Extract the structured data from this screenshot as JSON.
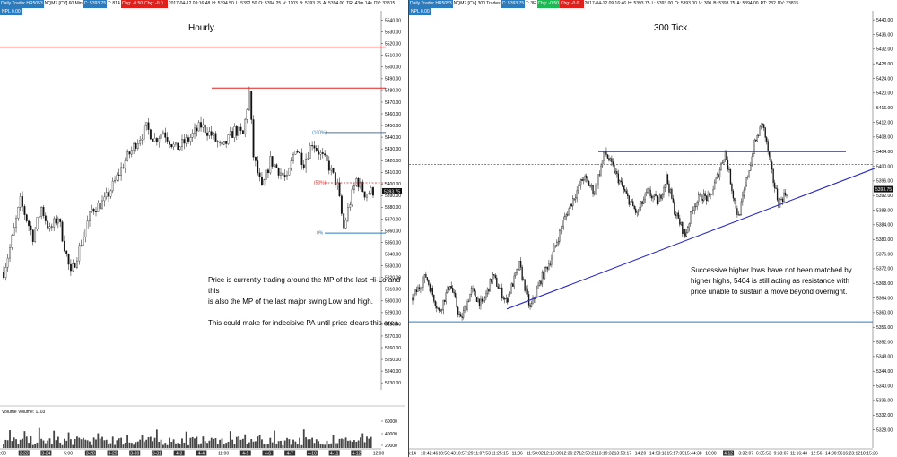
{
  "left": {
    "header": {
      "instrument": "Daily Trader HR5053",
      "symbol": "NQM7 [CV]  60 Min",
      "c": "C: 5393.75",
      "t": "T: 814",
      "chg": "Chg: -0.50",
      "chgp": "Chg: -0.0...",
      "date": "2017-04-12 09:16:48",
      "h": "H: 5394.50",
      "l": "L: 5392.50",
      "o": "O: 5394.25",
      "v": "V: 1103",
      "b": "B: 5393.75",
      "a": "A: 5394.00",
      "tr": "TR: 43m 14s",
      "dv": "DV: 33815",
      "sub": "NPL 0.00"
    },
    "title": "Hourly.",
    "note_lines": [
      "Price is currently trading  around the MP of the last Hi-Lo and this",
      "is also the MP of the last major swing Low and high.",
      "",
      "This could make for indecisive PA until price clears this area."
    ],
    "fib_labels": [
      "(100%)",
      "(50%)",
      "0%"
    ],
    "price_tag": "5393.75",
    "volume_label": "Volume  Volume: 1103",
    "volume_axis": [
      "60000",
      "40000",
      "20000"
    ],
    "x_labels": [
      "2:00",
      "3-23",
      "3-24",
      "5:00",
      "3-28",
      "3-29",
      "3-30",
      "3-31",
      "4-3",
      "4-4",
      "11:00",
      "4-5",
      "4-6",
      "4-7",
      "4-10",
      "4-11",
      "4-12",
      "12:00"
    ],
    "color_red": "#e0201c",
    "color_blue": "#2b7bbf"
  },
  "right": {
    "header": {
      "instrument": "Daily Trader HR5053",
      "symbol": "NQM7 [CV]  300 Trades",
      "c": "C: 5393.75",
      "t": "T: 3E",
      "chg": "Chg: -0.50",
      "chgp": "Chg: -0.0...",
      "date": "2017-04-12 09:16:46",
      "h": "H: 5393.75",
      "l": "L: 5393.00",
      "o": "O: 5393.00",
      "v": "V: 300",
      "b": "B: 5393.75",
      "a": "A: 5394.00",
      "rt": "RT: 282",
      "dv": "DV: 33815",
      "sub": "NPL 0.00"
    },
    "title": "300 Tick.",
    "note_lines": [
      "Successive higher lows have not been matched by",
      "higher highs, 5404 is still acting as resistance with",
      "price unable to sustain a move beyond overnight."
    ],
    "price_tag": "5393.75",
    "x_labels": [
      "4:14",
      "10:42:46",
      "10:50:43",
      "10:57:29",
      "11:07:53",
      "11:25:15",
      "11:36",
      "11:50:02",
      "12:19:39",
      "12:36:27",
      "12:59:21",
      "13:19:32",
      "13:50:17",
      "14:20",
      "14:53:18",
      "15:17:35",
      "15:44:38",
      "16:00",
      "4-12",
      "3:32:07",
      "6:35:53",
      "9:33:07",
      "11:16:43",
      "12:56",
      "14:30:56",
      "16:23:12",
      "18:15:26"
    ]
  },
  "chart_data": [
    {
      "type": "candlestick",
      "title": "Hourly.",
      "ylim": [
        5224,
        5542
      ],
      "yticks": [
        5540,
        5530,
        5520,
        5510,
        5500,
        5490,
        5480,
        5470,
        5460,
        5450,
        5440,
        5430,
        5420,
        5410,
        5400,
        5390,
        5380,
        5370,
        5360,
        5350,
        5340,
        5330,
        5320,
        5310,
        5300,
        5290,
        5280,
        5270,
        5260,
        5250,
        5240,
        5230
      ],
      "anchors": [
        [
          0,
          5325
        ],
        [
          3,
          5345
        ],
        [
          8,
          5385
        ],
        [
          14,
          5355
        ],
        [
          18,
          5380
        ],
        [
          22,
          5360
        ],
        [
          26,
          5372
        ],
        [
          32,
          5322
        ],
        [
          36,
          5345
        ],
        [
          42,
          5378
        ],
        [
          48,
          5385
        ],
        [
          53,
          5402
        ],
        [
          58,
          5420
        ],
        [
          63,
          5435
        ],
        [
          68,
          5448
        ],
        [
          72,
          5438
        ],
        [
          76,
          5445
        ],
        [
          82,
          5430
        ],
        [
          88,
          5438
        ],
        [
          94,
          5450
        ],
        [
          99,
          5442
        ],
        [
          104,
          5430
        ],
        [
          110,
          5446
        ],
        [
          114,
          5442
        ],
        [
          117,
          5478
        ],
        [
          119,
          5424
        ],
        [
          123,
          5395
        ],
        [
          127,
          5420
        ],
        [
          131,
          5412
        ],
        [
          135,
          5403
        ],
        [
          139,
          5432
        ],
        [
          143,
          5418
        ],
        [
          147,
          5436
        ],
        [
          151,
          5425
        ],
        [
          155,
          5415
        ],
        [
          159,
          5398
        ],
        [
          162,
          5362
        ],
        [
          164,
          5378
        ],
        [
          168,
          5404
        ],
        [
          172,
          5392
        ],
        [
          176,
          5394
        ]
      ],
      "levels": [
        {
          "value": 5482,
          "color": "#e0201c",
          "style": "solid"
        },
        {
          "value": 5517,
          "color": "#e0201c",
          "style": "solid"
        },
        {
          "value": 5444,
          "color": "#2b7bbf",
          "style": "solid"
        },
        {
          "value": 5401,
          "color": "#e0201c",
          "style": "dashed"
        },
        {
          "value": 5358,
          "color": "#2b7bbf",
          "style": "solid"
        }
      ],
      "last_price": 5393.75
    },
    {
      "type": "candlestick",
      "title": "300 Tick.",
      "ylim": [
        5323,
        5442
      ],
      "yticks": [
        5440,
        5436,
        5432,
        5428,
        5424,
        5420,
        5416,
        5412,
        5408,
        5404,
        5400,
        5396,
        5392,
        5388,
        5384,
        5380,
        5376,
        5372,
        5368,
        5364,
        5360,
        5356,
        5352,
        5348,
        5344,
        5340,
        5336,
        5332,
        5328
      ],
      "anchors": [
        [
          0,
          5364
        ],
        [
          10,
          5370
        ],
        [
          20,
          5360
        ],
        [
          28,
          5368
        ],
        [
          36,
          5358
        ],
        [
          44,
          5366
        ],
        [
          52,
          5362
        ],
        [
          60,
          5370
        ],
        [
          70,
          5363
        ],
        [
          80,
          5373
        ],
        [
          88,
          5361
        ],
        [
          96,
          5369
        ],
        [
          104,
          5375
        ],
        [
          112,
          5384
        ],
        [
          120,
          5391
        ],
        [
          128,
          5397
        ],
        [
          136,
          5393
        ],
        [
          144,
          5404
        ],
        [
          152,
          5398
        ],
        [
          160,
          5392
        ],
        [
          168,
          5387
        ],
        [
          176,
          5393
        ],
        [
          184,
          5390
        ],
        [
          190,
          5397
        ],
        [
          196,
          5388
        ],
        [
          204,
          5381
        ],
        [
          210,
          5389
        ],
        [
          216,
          5392
        ],
        [
          222,
          5391
        ],
        [
          228,
          5397
        ],
        [
          234,
          5404
        ],
        [
          240,
          5392
        ],
        [
          244,
          5386
        ],
        [
          250,
          5396
        ],
        [
          256,
          5406
        ],
        [
          262,
          5412
        ],
        [
          266,
          5404
        ],
        [
          270,
          5396
        ],
        [
          274,
          5390
        ],
        [
          280,
          5393
        ]
      ],
      "levels": [
        {
          "value": 5404,
          "color": "#2b2bc4",
          "style": "solid"
        },
        {
          "value": 5400.5,
          "color": "#e0201c",
          "style": "dashed"
        },
        {
          "value": 5357.5,
          "color": "#2b7bbf",
          "style": "solid"
        }
      ],
      "trendline": [
        [
          5361,
          0.25
        ],
        [
          5399.5,
          1.0
        ]
      ],
      "last_price": 5393.75
    }
  ]
}
